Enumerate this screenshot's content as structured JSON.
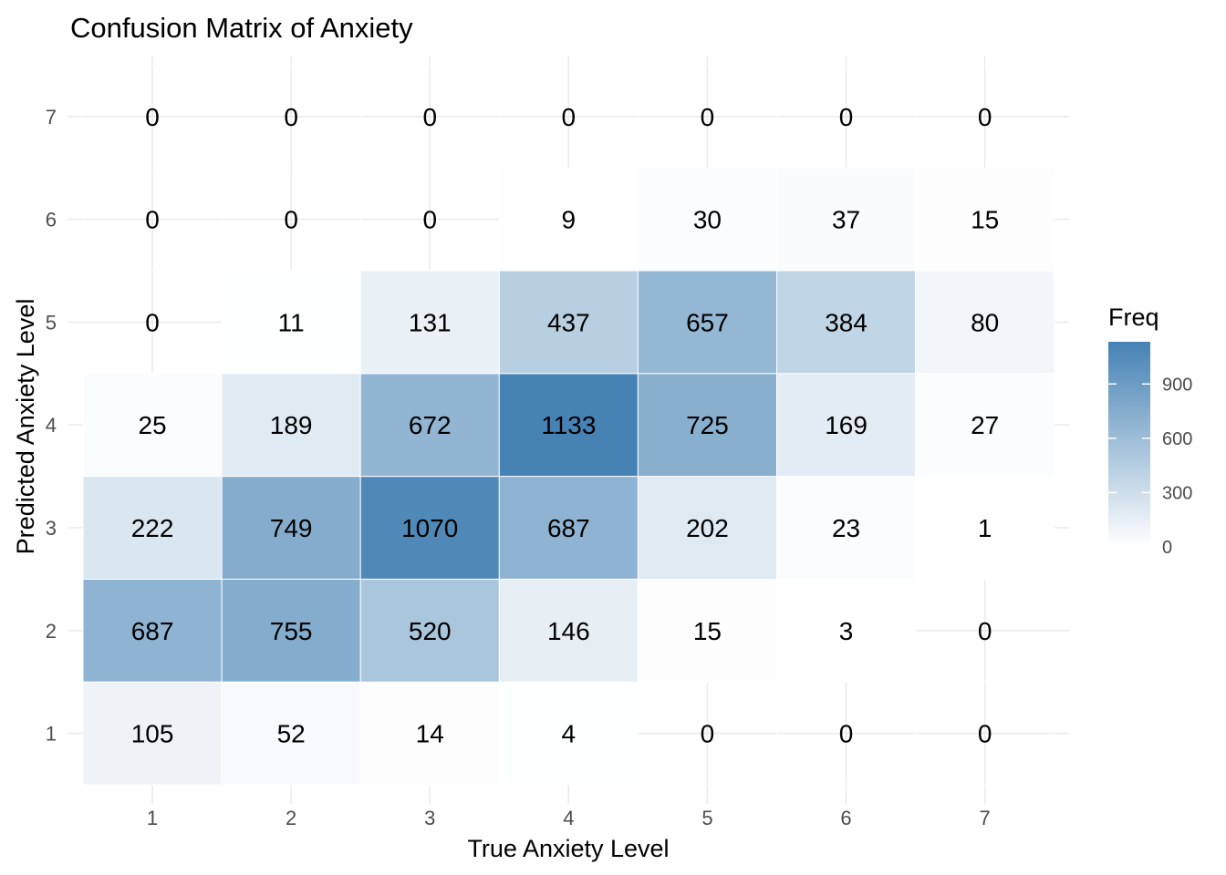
{
  "chart_data": {
    "type": "heatmap",
    "title": "Confusion Matrix of Anxiety",
    "xlabel": "True Anxiety Level",
    "ylabel": "Predicted Anxiety Level",
    "x_categories": [
      "1",
      "2",
      "3",
      "4",
      "5",
      "6",
      "7"
    ],
    "y_categories": [
      "1",
      "2",
      "3",
      "4",
      "5",
      "6",
      "7"
    ],
    "values": [
      [
        105,
        52,
        14,
        4,
        0,
        0,
        0
      ],
      [
        687,
        755,
        520,
        146,
        15,
        3,
        0
      ],
      [
        222,
        749,
        1070,
        687,
        202,
        23,
        1
      ],
      [
        25,
        189,
        672,
        1133,
        725,
        169,
        27
      ],
      [
        0,
        11,
        131,
        437,
        657,
        384,
        80
      ],
      [
        0,
        0,
        0,
        9,
        30,
        37,
        15
      ],
      [
        0,
        0,
        0,
        0,
        0,
        0,
        0
      ]
    ],
    "value_range": [
      0,
      1133
    ],
    "color_low": "#ffffff",
    "color_high": "#4682b4",
    "legend": {
      "title": "Freq",
      "ticks": [
        0,
        300,
        600,
        900
      ],
      "placement": "right"
    }
  }
}
